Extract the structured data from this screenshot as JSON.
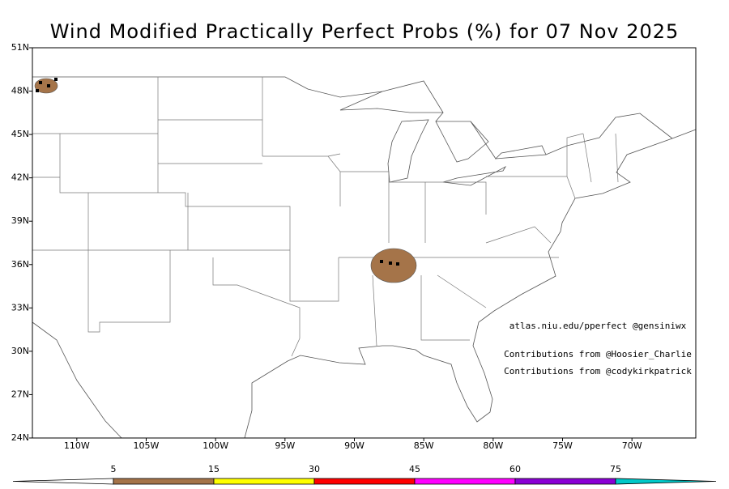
{
  "title": "Wind Modified Practically Perfect Probs (%) for 07 Nov 2025",
  "map": {
    "xlim": [
      -113.2,
      -65.4
    ],
    "ylim": [
      24,
      51
    ],
    "xticks": [
      {
        "value": -110,
        "label": "110W"
      },
      {
        "value": -105,
        "label": "105W"
      },
      {
        "value": -100,
        "label": "100W"
      },
      {
        "value": -95,
        "label": "95W"
      },
      {
        "value": -90,
        "label": "90W"
      },
      {
        "value": -85,
        "label": "85W"
      },
      {
        "value": -80,
        "label": "80W"
      },
      {
        "value": -75,
        "label": "75W"
      },
      {
        "value": -70,
        "label": "70W"
      }
    ],
    "yticks": [
      {
        "value": 51,
        "label": "51N"
      },
      {
        "value": 48,
        "label": "48N"
      },
      {
        "value": 45,
        "label": "45N"
      },
      {
        "value": 42,
        "label": "42N"
      },
      {
        "value": 39,
        "label": "39N"
      },
      {
        "value": 36,
        "label": "36N"
      },
      {
        "value": 33,
        "label": "33N"
      },
      {
        "value": 30,
        "label": "30N"
      },
      {
        "value": 27,
        "label": "27N"
      },
      {
        "value": 24,
        "label": "24N"
      }
    ]
  },
  "annotations": [
    "atlas.niu.edu/pperfect @gensiniwx",
    "Contributions from @Hoosier_Charlie",
    "Contributions from @codykirkpatrick"
  ],
  "colorbar": {
    "levels": [
      5,
      15,
      30,
      45,
      60,
      75
    ],
    "colors": [
      "#ffffff",
      "#a57449",
      "#ffff00",
      "#ff0000",
      "#ff00ff",
      "#8a00d4",
      "#00c8c8"
    ]
  }
}
